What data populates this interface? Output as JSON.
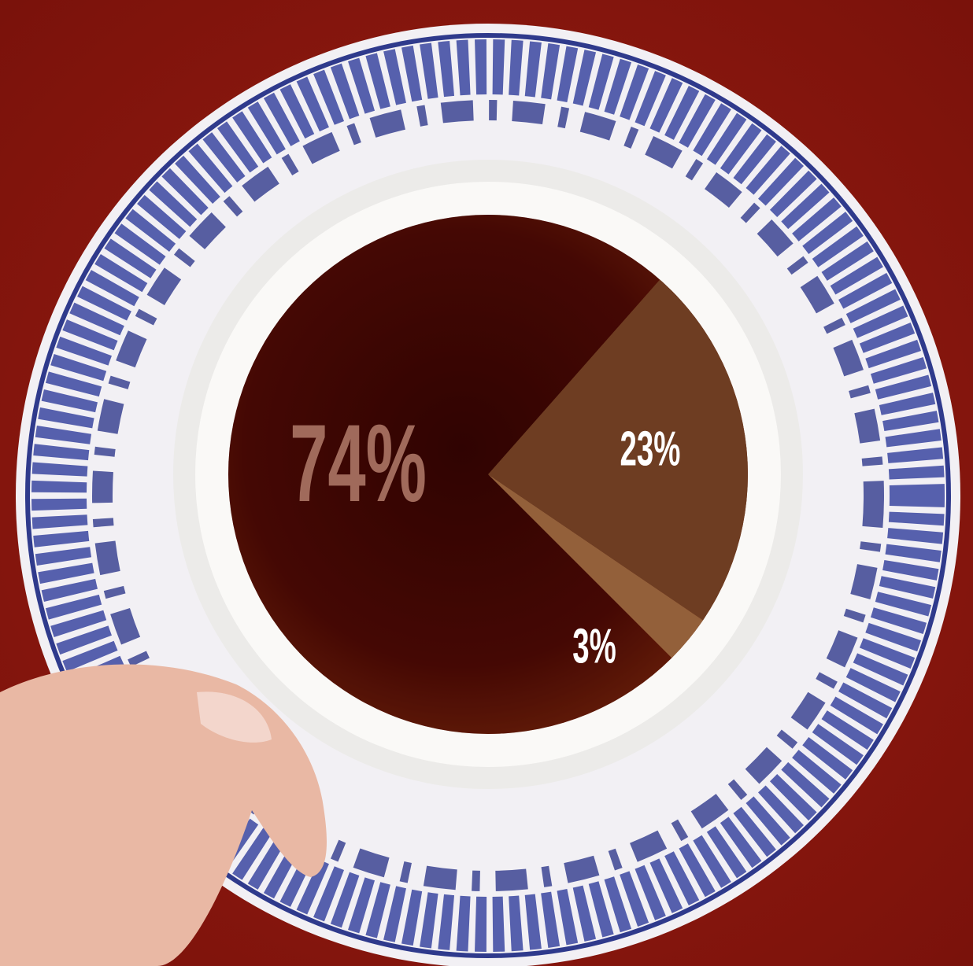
{
  "chart_data": {
    "type": "pie",
    "values": [
      74,
      23,
      3
    ],
    "value_labels": [
      "74%",
      "23%",
      "3%"
    ],
    "colors": [
      "#3c0604",
      "#6e3d22",
      "#93603a"
    ],
    "label_colors": [
      "#a06a5b",
      "#ffffff",
      "#ffffff"
    ]
  }
}
